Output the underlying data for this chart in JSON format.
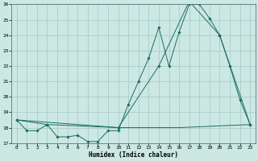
{
  "xlabel": "Humidex (Indice chaleur)",
  "bg_color": "#cce8e2",
  "grid_color": "#aacccc",
  "line_color": "#1a6e62",
  "xlim": [
    -0.5,
    23.5
  ],
  "ylim": [
    17,
    26
  ],
  "xticks": [
    0,
    1,
    2,
    3,
    4,
    5,
    6,
    7,
    8,
    9,
    10,
    11,
    12,
    13,
    14,
    15,
    16,
    17,
    18,
    19,
    20,
    21,
    22,
    23
  ],
  "yticks": [
    17,
    18,
    19,
    20,
    21,
    22,
    23,
    24,
    25,
    26
  ],
  "series1_x": [
    0,
    1,
    2,
    3,
    4,
    5,
    6,
    7,
    8,
    9,
    10,
    11,
    12,
    13,
    14,
    15,
    16,
    17,
    18,
    19,
    20,
    21,
    22,
    23
  ],
  "series1_y": [
    18.5,
    17.8,
    17.8,
    18.2,
    17.4,
    17.4,
    17.5,
    17.1,
    17.1,
    17.8,
    17.8,
    19.5,
    21.0,
    22.5,
    24.5,
    22.0,
    24.2,
    26.0,
    26.0,
    25.1,
    24.0,
    22.0,
    19.8,
    18.2
  ],
  "series2_x": [
    0,
    3,
    10,
    14,
    17,
    20,
    23
  ],
  "series2_y": [
    18.5,
    18.2,
    18.0,
    22.0,
    26.2,
    24.0,
    18.2
  ],
  "series3_x": [
    0,
    10,
    16,
    23
  ],
  "series3_y": [
    18.5,
    18.0,
    18.0,
    18.2
  ]
}
